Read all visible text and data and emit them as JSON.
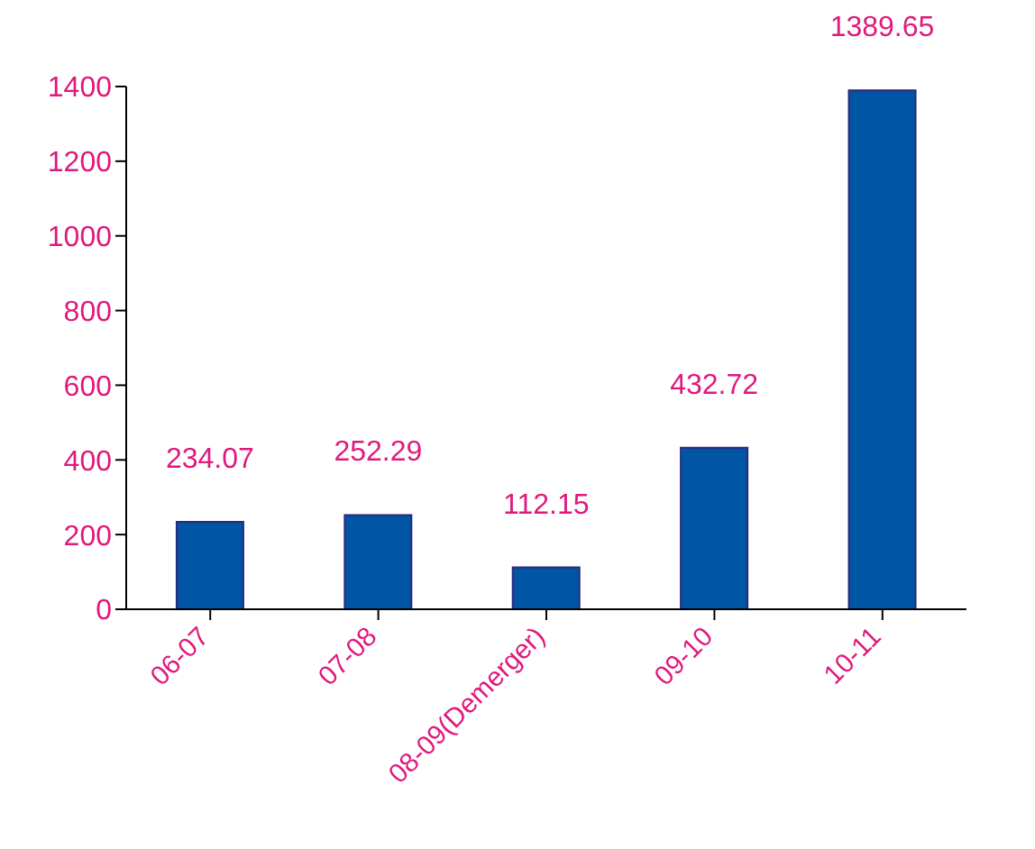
{
  "chart_data": {
    "type": "bar",
    "categories": [
      "06-07",
      "07-08",
      "08-09(Demerger)",
      "09-10",
      "10-11"
    ],
    "values": [
      234.07,
      252.29,
      112.15,
      432.72,
      1389.65
    ],
    "color": "#0055a5",
    "ylim": [
      0,
      1400
    ],
    "yticks": [
      0,
      200,
      400,
      600,
      800,
      1000,
      1200,
      1400
    ],
    "data_labels": true
  }
}
